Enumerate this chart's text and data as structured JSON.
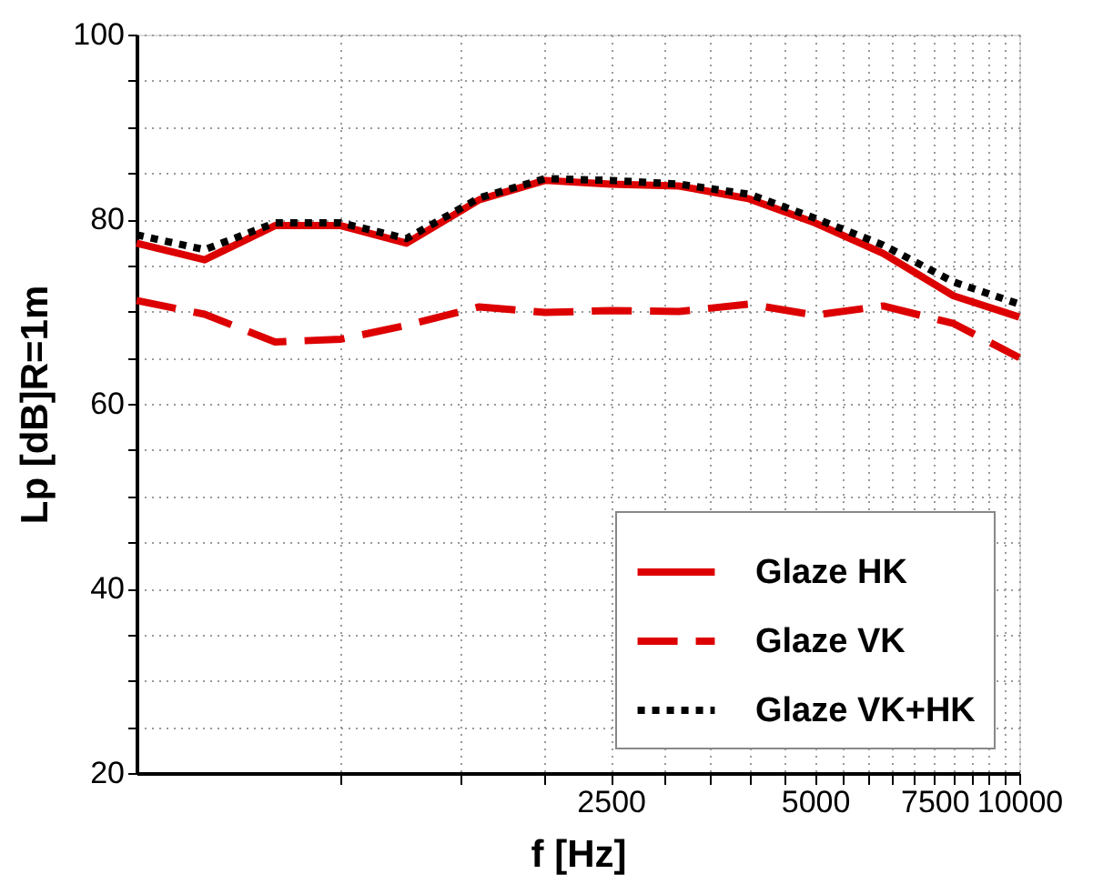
{
  "chart_data": {
    "type": "line",
    "xlabel": "f [Hz]",
    "ylabel": "Lp [dB]R=1m",
    "x": [
      500,
      630,
      800,
      1000,
      1250,
      1600,
      2000,
      2500,
      3150,
      4000,
      5000,
      6300,
      8000,
      10000
    ],
    "series": [
      {
        "name": "Glaze HK",
        "color": "#dd0000",
        "line_style": "solid",
        "values": [
          77.4,
          75.6,
          79.3,
          79.3,
          77.4,
          82.1,
          84.2,
          83.8,
          83.6,
          82.2,
          79.6,
          76.3,
          71.7,
          69.4
        ]
      },
      {
        "name": "Glaze VK",
        "color": "#dd0000",
        "line_style": "dashed",
        "values": [
          71.2,
          69.7,
          66.7,
          67.0,
          68.5,
          70.5,
          69.9,
          70.1,
          70.0,
          70.8,
          69.6,
          70.6,
          68.7,
          65.0
        ]
      },
      {
        "name": "Glaze VK+HK",
        "color": "#000000",
        "line_style": "dotted",
        "values": [
          78.3,
          76.7,
          79.6,
          79.6,
          77.9,
          82.3,
          84.4,
          84.2,
          83.8,
          82.7,
          80.1,
          77.2,
          73.2,
          70.8
        ]
      }
    ],
    "log": "x",
    "xlim": [
      500,
      10000
    ],
    "ylim": [
      20,
      100
    ],
    "xticks": [
      {
        "value": 1000,
        "label": null
      },
      {
        "value": 1500,
        "label": null
      },
      {
        "value": 2000,
        "label": null
      },
      2500,
      {
        "value": 3000,
        "label": null
      },
      {
        "value": 3500,
        "label": null
      },
      {
        "value": 4000,
        "label": null
      },
      {
        "value": 4500,
        "label": null
      },
      5000,
      {
        "value": 5500,
        "label": null
      },
      {
        "value": 6000,
        "label": null
      },
      {
        "value": 6500,
        "label": null
      },
      {
        "value": 7000,
        "label": null
      },
      7500,
      {
        "value": 8000,
        "label": null
      },
      {
        "value": 8500,
        "label": null
      },
      {
        "value": 9000,
        "label": null
      },
      {
        "value": 9500,
        "label": null
      },
      10000
    ],
    "yticks": [
      20,
      {
        "value": 25,
        "label": null
      },
      {
        "value": 30,
        "label": null
      },
      {
        "value": 35,
        "label": null
      },
      40,
      {
        "value": 45,
        "label": null
      },
      {
        "value": 50,
        "label": null
      },
      {
        "value": 55,
        "label": null
      },
      60,
      {
        "value": 65,
        "label": null
      },
      {
        "value": 70,
        "label": null
      },
      {
        "value": 75,
        "label": null
      },
      80,
      {
        "value": 85,
        "label": null
      },
      {
        "value": 90,
        "label": null
      },
      {
        "value": 95,
        "label": null
      },
      100
    ],
    "grid": true,
    "legend": "bottom right",
    "marker": "none"
  }
}
